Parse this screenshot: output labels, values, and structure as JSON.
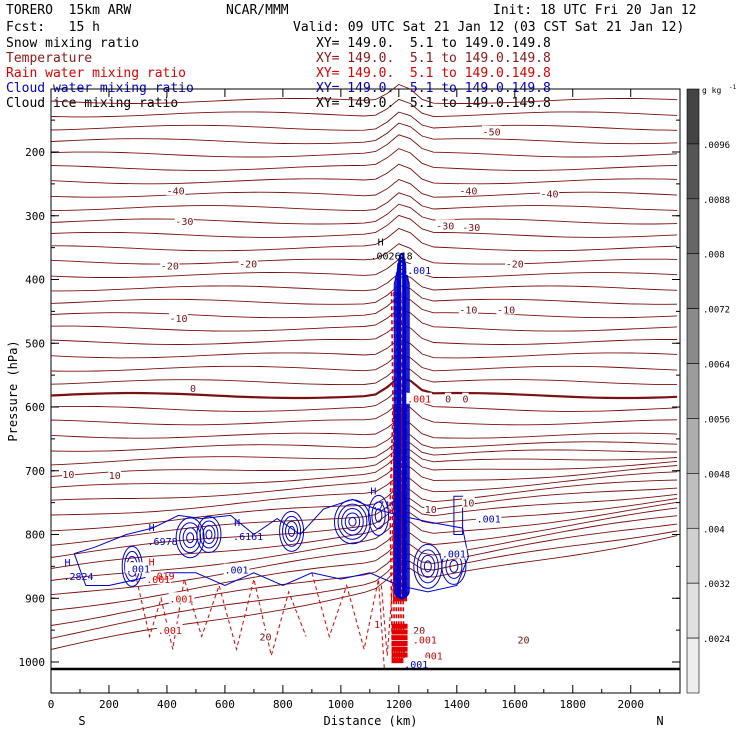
{
  "header": {
    "model": "TORERO  15km ARW",
    "center": "NCAR/MMM",
    "init": "Init: 18 UTC Fri 20 Jan 12",
    "fcst": "Fcst:   15 h",
    "valid": "Valid: 09 UTC Sat 21 Jan 12 (03 CST Sat 21 Jan 12)"
  },
  "fields": [
    {
      "name": "Snow mixing ratio",
      "xy": "XY= 149.0.  5.1 to 149.0.149.8",
      "color": "#000000"
    },
    {
      "name": "Temperature",
      "xy": "XY= 149.0.  5.1 to 149.0.149.8",
      "color": "#8b1a1a"
    },
    {
      "name": "Rain water mixing ratio",
      "xy": "XY= 149.0.  5.1 to 149.0.149.8",
      "color": "#e00000"
    },
    {
      "name": "Cloud water mixing ratio",
      "xy": "XY= 149.0.  5.1 to 149.0.149.8",
      "color": "#0000cc"
    },
    {
      "name": "Cloud ice mixing ratio",
      "xy": "XY= 149.0.  5.1 to 149.0.149.8",
      "color": "#000000"
    }
  ],
  "chart_data": {
    "type": "contour-cross-section",
    "xlabel": "Distance (km)",
    "ylabel": "Pressure (hPa)",
    "xlim": [
      0,
      2170
    ],
    "ylim": [
      1050,
      100
    ],
    "xticks": [
      0,
      200,
      400,
      600,
      800,
      1000,
      1200,
      1400,
      1600,
      1800,
      2000
    ],
    "yticks": [
      200,
      300,
      400,
      500,
      600,
      700,
      800,
      900,
      1000
    ],
    "x_end_labels": {
      "left": "S",
      "right": "N"
    },
    "colorbar": {
      "units": "g kg",
      "units_exp": "-1",
      "ticks": [
        ".0096",
        ".0088",
        ".008",
        ".0072",
        ".0064",
        ".0056",
        ".0048",
        ".004",
        ".0032",
        ".0024"
      ],
      "colors": [
        "#444444",
        "#555555",
        "#666666",
        "#777777",
        "#8a8a8a",
        "#9c9c9c",
        "#adadad",
        "#bfbfbf",
        "#d0d0d0",
        "#e0e0e0",
        "#eeeeee"
      ]
    },
    "temperature_labels": [
      {
        "text": "-50",
        "x": 1520,
        "p": 168
      },
      {
        "text": "-40",
        "x": 430,
        "p": 260
      },
      {
        "text": "-40",
        "x": 1440,
        "p": 260
      },
      {
        "text": "-40",
        "x": 1720,
        "p": 265
      },
      {
        "text": "-30",
        "x": 460,
        "p": 308
      },
      {
        "text": "-30",
        "x": 1360,
        "p": 315
      },
      {
        "text": "-30",
        "x": 1450,
        "p": 318
      },
      {
        "text": "-20",
        "x": 410,
        "p": 378
      },
      {
        "text": "-20",
        "x": 680,
        "p": 375
      },
      {
        "text": "-20",
        "x": 1600,
        "p": 375
      },
      {
        "text": "-10",
        "x": 440,
        "p": 460
      },
      {
        "text": "-10",
        "x": 1440,
        "p": 447
      },
      {
        "text": "-10",
        "x": 1570,
        "p": 447
      },
      {
        "text": "0",
        "x": 490,
        "p": 570
      },
      {
        "text": "0",
        "x": 1370,
        "p": 587
      },
      {
        "text": "0",
        "x": 1430,
        "p": 587
      },
      {
        "text": "10",
        "x": 60,
        "p": 705
      },
      {
        "text": "10",
        "x": 220,
        "p": 707
      },
      {
        "text": "10",
        "x": 1310,
        "p": 760
      },
      {
        "text": "10",
        "x": 1440,
        "p": 750
      },
      {
        "text": "20",
        "x": 740,
        "p": 960
      },
      {
        "text": "20",
        "x": 1270,
        "p": 950
      },
      {
        "text": "20",
        "x": 1630,
        "p": 965
      }
    ],
    "rain_labels": [
      {
        "text": ".001",
        "x": 450,
        "p": 900
      },
      {
        "text": ".001",
        "x": 410,
        "p": 950
      },
      {
        "text": ".001",
        "x": 370,
        "p": 870
      },
      {
        "text": "1",
        "x": 1125,
        "p": 940
      },
      {
        "text": ".001",
        "x": 1310,
        "p": 990
      },
      {
        "text": ".001",
        "x": 1270,
        "p": 587
      },
      {
        "text": ".001",
        "x": 1290,
        "p": 965
      }
    ],
    "cloud_labels": [
      {
        "text": ".001",
        "x": 1270,
        "p": 385
      },
      {
        "text": ".001",
        "x": 1510,
        "p": 775
      },
      {
        "text": ".001",
        "x": 640,
        "p": 855
      },
      {
        "text": ".001",
        "x": 300,
        "p": 853
      },
      {
        "text": ".001",
        "x": 1390,
        "p": 830
      },
      {
        "text": ".001",
        "x": 1260,
        "p": 1003
      }
    ],
    "maxima": [
      {
        "text": ".6978",
        "x": 385,
        "p": 810,
        "color": "#0000cc"
      },
      {
        "text": ".6161",
        "x": 680,
        "p": 802,
        "color": "#0000cc"
      },
      {
        "text": ".2824",
        "x": 95,
        "p": 865,
        "color": "#0000cc"
      },
      {
        "text": ".019",
        "x": 385,
        "p": 864,
        "color": "#e00000"
      },
      {
        "text": ".715",
        "x": 1150,
        "p": 753,
        "color": "#0000cc"
      },
      {
        "text": ".002618",
        "x": 1175,
        "p": 362,
        "color": "#000000"
      }
    ]
  }
}
